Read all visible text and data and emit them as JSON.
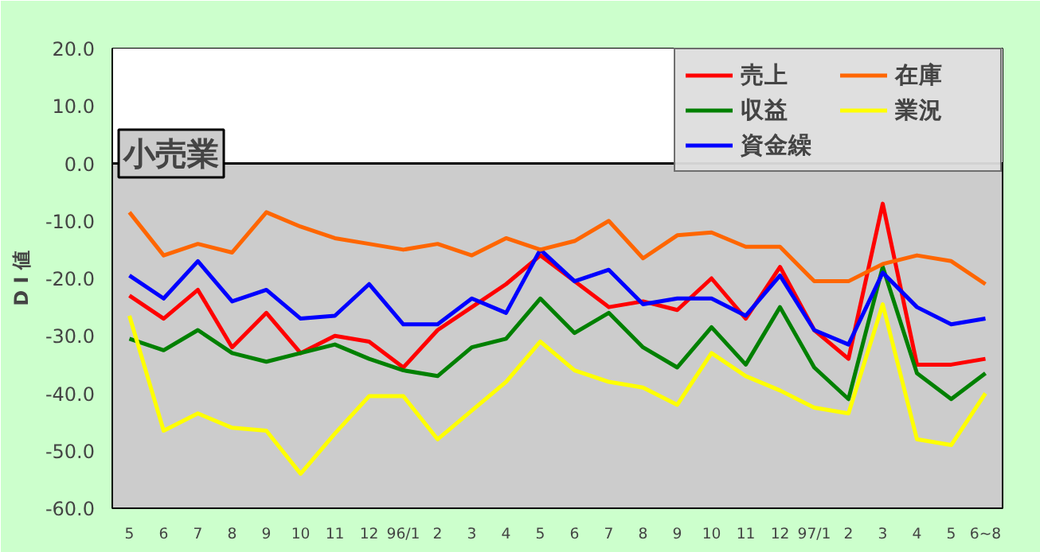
{
  "chart_data": {
    "type": "line",
    "title": "小売業",
    "ylabel": "D I 値",
    "categories": [
      "5",
      "6",
      "7",
      "8",
      "9",
      "10",
      "11",
      "12",
      "96/1",
      "2",
      "3",
      "4",
      "5",
      "6",
      "7",
      "8",
      "9",
      "10",
      "11",
      "12",
      "97/1",
      "2",
      "3",
      "4",
      "5",
      "6~8"
    ],
    "series": [
      {
        "name": "売上",
        "color": "#ff0000",
        "values": [
          -23,
          -27,
          -22,
          -32,
          -26,
          -33,
          -30,
          -31,
          -35.5,
          -29,
          -25,
          -21,
          -16,
          -20.5,
          -25,
          -24,
          -25.5,
          -20,
          -27,
          -18,
          -29,
          -34,
          -7,
          -35,
          -35,
          -34
        ]
      },
      {
        "name": "収益",
        "color": "#008000",
        "values": [
          -30.5,
          -32.5,
          -29,
          -33,
          -34.5,
          -33,
          -31.5,
          -34,
          -36,
          -37,
          -32,
          -30.5,
          -23.5,
          -29.5,
          -26,
          -32,
          -35.5,
          -28.5,
          -35,
          -25,
          -35.5,
          -41,
          -18,
          -36.5,
          -41,
          -36.5
        ]
      },
      {
        "name": "資金繰",
        "color": "#0000ff",
        "values": [
          -19.5,
          -23.5,
          -17,
          -24,
          -22,
          -27,
          -26.5,
          -21,
          -28,
          -28,
          -23.5,
          -26,
          -15,
          -20.5,
          -18.5,
          -24.5,
          -23.5,
          -23.5,
          -26.5,
          -19.5,
          -29,
          -31.5,
          -19,
          -25,
          -28,
          -27
        ]
      },
      {
        "name": "在庫",
        "color": "#ff6600",
        "values": [
          -8.5,
          -16,
          -14,
          -15.5,
          -8.5,
          -11,
          -13,
          -14,
          -15,
          -14,
          -16,
          -13,
          -15,
          -13.5,
          -10,
          -16.5,
          -12.5,
          -12,
          -14.5,
          -14.5,
          -20.5,
          -20.5,
          -17.5,
          -16,
          -17,
          -21
        ]
      },
      {
        "name": "業況",
        "color": "#ffff00",
        "values": [
          -26.5,
          -46.5,
          -43.5,
          -46,
          -46.5,
          -54,
          -47,
          -40.5,
          -40.5,
          -48,
          -43,
          -38,
          -31,
          -36,
          -38,
          -39,
          -42,
          -33,
          -37,
          -39.5,
          -42.5,
          -43.5,
          -24.5,
          -48,
          -49,
          -40
        ]
      }
    ],
    "ylim": [
      -60,
      20
    ],
    "yticks": [
      {
        "value": -60,
        "label": "-60.0"
      },
      {
        "value": -50,
        "label": "-50.0"
      },
      {
        "value": -40,
        "label": "-40.0"
      },
      {
        "value": -30,
        "label": "-30.0"
      },
      {
        "value": -20,
        "label": "-20.0"
      },
      {
        "value": -10,
        "label": "-10.0"
      },
      {
        "value": 0,
        "label": "0.0"
      },
      {
        "value": 10,
        "label": "10.0"
      },
      {
        "value": 20,
        "label": "20.0"
      }
    ],
    "ref_lines": [
      {
        "axis": "y",
        "value": 0,
        "color": "#000000"
      }
    ],
    "grid": false,
    "legend": "top right",
    "marker": "none",
    "line_style": "solid"
  }
}
